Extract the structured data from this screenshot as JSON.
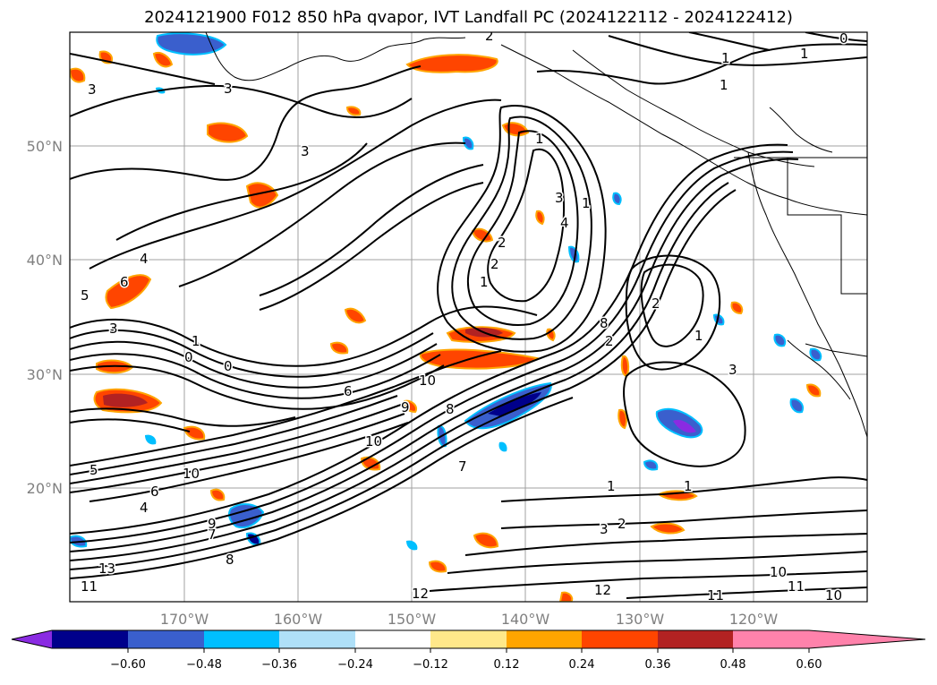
{
  "title": "2024121900 F012 850 hPa qvapor, IVT Landfall PC (2024122112 - 2024122412)",
  "lat_labels": [
    "50°N",
    "40°N",
    "30°N",
    "20°N"
  ],
  "lon_labels": [
    "170°W",
    "160°W",
    "150°W",
    "140°W",
    "130°W",
    "120°W"
  ],
  "colorbar": {
    "ticks": [
      "−0.60",
      "−0.48",
      "−0.36",
      "−0.24",
      "−0.12",
      "0.12",
      "0.24",
      "0.36",
      "0.48",
      "0.60"
    ],
    "colors": [
      "#8a2be2",
      "#00008b",
      "#3a5fcd",
      "#00bfff",
      "#afe0f8",
      "#ffffff",
      "#ffe88a",
      "#ffa500",
      "#ff4500",
      "#b22222",
      "#ff82ab"
    ]
  },
  "contour_labels": [
    "3",
    "3",
    "3",
    "2",
    "1",
    "1",
    "0",
    "1",
    "3",
    "4",
    "2",
    "1",
    "2",
    "1",
    "4",
    "6",
    "5",
    "3",
    "0",
    "0",
    "1",
    "2",
    "1",
    "8",
    "2",
    "3",
    "6",
    "10",
    "10",
    "9",
    "8",
    "7",
    "6",
    "5",
    "4",
    "7",
    "8",
    "9",
    "10",
    "11",
    "12",
    "11",
    "12",
    "13",
    "10",
    "11",
    "10",
    "1",
    "1",
    "3",
    "2",
    "1"
  ]
}
